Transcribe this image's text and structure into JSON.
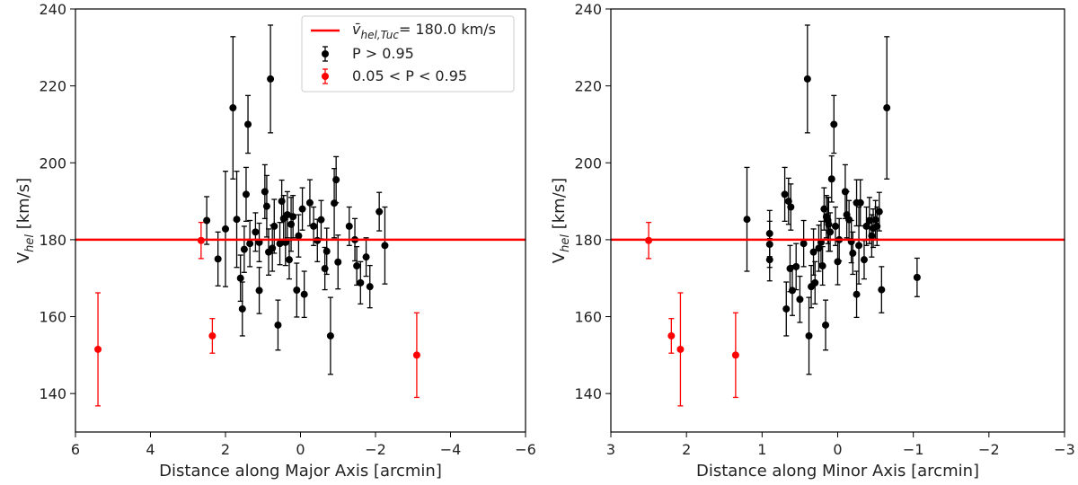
{
  "chart_data": [
    {
      "type": "scatter",
      "xlabel": "Distance along Major Axis [arcmin]",
      "ylabel": "V",
      "ylabel_sub": "hel",
      "ylabel_suffix": " [km/s]",
      "xlim": [
        6,
        -6
      ],
      "ylim": [
        130,
        240
      ],
      "xticks": [
        6,
        4,
        2,
        0,
        -2,
        -4,
        -6
      ],
      "yticks": [
        140,
        160,
        180,
        200,
        220,
        240
      ],
      "xtick_labels": [
        "6",
        "4",
        "2",
        "0",
        "−2",
        "−4",
        "−6"
      ],
      "ytick_labels": [
        "140",
        "160",
        "180",
        "200",
        "220",
        "240"
      ],
      "hline": 180.0,
      "legend": {
        "location": "upper right",
        "mean_label": "= 180.0 km/s",
        "member_label": "P > 0.95",
        "candidate_label": "0.05 < P < 0.95"
      },
      "series": [
        {
          "name": "P > 0.95",
          "color": "#000000",
          "points": [
            {
              "x": 2.5,
              "y": 185.0,
              "err": 6.2
            },
            {
              "x": 2.2,
              "y": 175.0,
              "err": 7.0
            },
            {
              "x": 2.0,
              "y": 182.8,
              "err": 15.0
            },
            {
              "x": 1.8,
              "y": 214.3,
              "err": 18.5
            },
            {
              "x": 1.7,
              "y": 185.3,
              "err": 12.5
            },
            {
              "x": 1.6,
              "y": 170.0,
              "err": 6.0
            },
            {
              "x": 1.55,
              "y": 162.0,
              "err": 7.0
            },
            {
              "x": 1.5,
              "y": 177.5,
              "err": 6.0
            },
            {
              "x": 1.45,
              "y": 191.8,
              "err": 7.0
            },
            {
              "x": 1.4,
              "y": 210.0,
              "err": 7.5
            },
            {
              "x": 1.35,
              "y": 179.0,
              "err": 6.0
            },
            {
              "x": 1.2,
              "y": 182.0,
              "err": 5.0
            },
            {
              "x": 1.1,
              "y": 166.8,
              "err": 6.0
            },
            {
              "x": 1.1,
              "y": 179.3,
              "err": 5.0
            },
            {
              "x": 0.95,
              "y": 192.5,
              "err": 7.0
            },
            {
              "x": 0.9,
              "y": 188.7,
              "err": 8.0
            },
            {
              "x": 0.85,
              "y": 176.8,
              "err": 6.0
            },
            {
              "x": 0.8,
              "y": 221.8,
              "err": 14.0
            },
            {
              "x": 0.75,
              "y": 177.8,
              "err": 6.0
            },
            {
              "x": 0.7,
              "y": 183.5,
              "err": 7.0
            },
            {
              "x": 0.6,
              "y": 157.8,
              "err": 6.5
            },
            {
              "x": 0.55,
              "y": 179.0,
              "err": 5.5
            },
            {
              "x": 0.5,
              "y": 190.0,
              "err": 5.5
            },
            {
              "x": 0.45,
              "y": 185.5,
              "err": 6.0
            },
            {
              "x": 0.4,
              "y": 179.3,
              "err": 6.0
            },
            {
              "x": 0.35,
              "y": 186.5,
              "err": 6.0
            },
            {
              "x": 0.3,
              "y": 174.8,
              "err": 5.0
            },
            {
              "x": 0.25,
              "y": 184.0,
              "err": 7.0
            },
            {
              "x": 0.2,
              "y": 186.0,
              "err": 5.5
            },
            {
              "x": 0.1,
              "y": 166.9,
              "err": 7.0
            },
            {
              "x": 0.05,
              "y": 181.0,
              "err": 5.5
            },
            {
              "x": -0.05,
              "y": 188.0,
              "err": 5.5
            },
            {
              "x": -0.1,
              "y": 165.8,
              "err": 6.0
            },
            {
              "x": -0.25,
              "y": 189.6,
              "err": 6.0
            },
            {
              "x": -0.35,
              "y": 183.5,
              "err": 5.0
            },
            {
              "x": -0.45,
              "y": 179.8,
              "err": 5.5
            },
            {
              "x": -0.55,
              "y": 185.2,
              "err": 5.0
            },
            {
              "x": -0.65,
              "y": 172.5,
              "err": 5.5
            },
            {
              "x": -0.7,
              "y": 177.0,
              "err": 6.0
            },
            {
              "x": -0.8,
              "y": 155.0,
              "err": 10.0
            },
            {
              "x": -0.9,
              "y": 189.5,
              "err": 9.0
            },
            {
              "x": -0.95,
              "y": 195.6,
              "err": 6.0
            },
            {
              "x": -1.0,
              "y": 174.2,
              "err": 7.0
            },
            {
              "x": -1.3,
              "y": 183.5,
              "err": 5.0
            },
            {
              "x": -1.45,
              "y": 180.0,
              "err": 5.5
            },
            {
              "x": -1.5,
              "y": 173.2,
              "err": 5.0
            },
            {
              "x": -1.6,
              "y": 168.8,
              "err": 5.5
            },
            {
              "x": -1.75,
              "y": 175.5,
              "err": 5.0
            },
            {
              "x": -1.85,
              "y": 167.8,
              "err": 5.5
            },
            {
              "x": -2.1,
              "y": 187.3,
              "err": 5.0
            },
            {
              "x": -2.25,
              "y": 178.5,
              "err": 10.0
            }
          ]
        },
        {
          "name": "0.05 < P < 0.95",
          "color": "#ff0000",
          "points": [
            {
              "x": 5.4,
              "y": 151.5,
              "err": 14.7
            },
            {
              "x": 2.65,
              "y": 179.8,
              "err": 4.7
            },
            {
              "x": 2.35,
              "y": 155.0,
              "err": 4.5
            },
            {
              "x": -3.1,
              "y": 150.0,
              "err": 11.0
            }
          ]
        }
      ]
    },
    {
      "type": "scatter",
      "xlabel": "Distance along Minor Axis [arcmin]",
      "ylabel": "V",
      "ylabel_sub": "hel",
      "ylabel_suffix": " [km/s]",
      "xlim": [
        3,
        -3
      ],
      "ylim": [
        130,
        240
      ],
      "xticks": [
        3,
        2,
        1,
        0,
        -1,
        -2,
        -3
      ],
      "yticks": [
        140,
        160,
        180,
        200,
        220,
        240
      ],
      "xtick_labels": [
        "3",
        "2",
        "1",
        "0",
        "−1",
        "−2",
        "−3"
      ],
      "ytick_labels": [
        "140",
        "160",
        "180",
        "200",
        "220",
        "240"
      ],
      "hline": 180.0,
      "series": [
        {
          "name": "P > 0.95",
          "color": "#000000",
          "points": [
            {
              "x": 1.2,
              "y": 185.3,
              "err": 13.5
            },
            {
              "x": 0.9,
              "y": 181.6,
              "err": 6.0
            },
            {
              "x": 0.9,
              "y": 178.8,
              "err": 6.0
            },
            {
              "x": 0.9,
              "y": 174.8,
              "err": 5.5
            },
            {
              "x": 0.7,
              "y": 191.8,
              "err": 7.0
            },
            {
              "x": 0.68,
              "y": 162.0,
              "err": 7.0
            },
            {
              "x": 0.65,
              "y": 190.0,
              "err": 6.0
            },
            {
              "x": 0.63,
              "y": 172.5,
              "err": 6.0
            },
            {
              "x": 0.62,
              "y": 188.5,
              "err": 6.0
            },
            {
              "x": 0.6,
              "y": 166.8,
              "err": 6.5
            },
            {
              "x": 0.55,
              "y": 173.0,
              "err": 6.0
            },
            {
              "x": 0.5,
              "y": 164.5,
              "err": 6.0
            },
            {
              "x": 0.45,
              "y": 179.0,
              "err": 6.0
            },
            {
              "x": 0.4,
              "y": 221.8,
              "err": 14.0
            },
            {
              "x": 0.38,
              "y": 155.0,
              "err": 10.0
            },
            {
              "x": 0.35,
              "y": 167.8,
              "err": 5.5
            },
            {
              "x": 0.32,
              "y": 176.8,
              "err": 6.0
            },
            {
              "x": 0.3,
              "y": 168.8,
              "err": 5.5
            },
            {
              "x": 0.25,
              "y": 177.8,
              "err": 6.0
            },
            {
              "x": 0.22,
              "y": 179.3,
              "err": 5.5
            },
            {
              "x": 0.2,
              "y": 173.2,
              "err": 5.0
            },
            {
              "x": 0.18,
              "y": 188.0,
              "err": 5.5
            },
            {
              "x": 0.16,
              "y": 157.8,
              "err": 6.5
            },
            {
              "x": 0.15,
              "y": 186.0,
              "err": 5.5
            },
            {
              "x": 0.13,
              "y": 185.0,
              "err": 6.0
            },
            {
              "x": 0.12,
              "y": 184.0,
              "err": 7.0
            },
            {
              "x": 0.1,
              "y": 182.0,
              "err": 5.0
            },
            {
              "x": 0.08,
              "y": 195.8,
              "err": 6.0
            },
            {
              "x": 0.05,
              "y": 210.0,
              "err": 7.5
            },
            {
              "x": 0.03,
              "y": 183.5,
              "err": 5.0
            },
            {
              "x": 0.0,
              "y": 174.3,
              "err": 6.0
            },
            {
              "x": -0.02,
              "y": 180.0,
              "err": 5.5
            },
            {
              "x": -0.1,
              "y": 192.5,
              "err": 7.0
            },
            {
              "x": -0.12,
              "y": 186.5,
              "err": 6.0
            },
            {
              "x": -0.15,
              "y": 185.2,
              "err": 5.0
            },
            {
              "x": -0.18,
              "y": 179.5,
              "err": 5.5
            },
            {
              "x": -0.2,
              "y": 176.5,
              "err": 5.5
            },
            {
              "x": -0.25,
              "y": 165.8,
              "err": 6.0
            },
            {
              "x": -0.25,
              "y": 189.6,
              "err": 6.0
            },
            {
              "x": -0.28,
              "y": 178.5,
              "err": 10.0
            },
            {
              "x": -0.3,
              "y": 189.6,
              "err": 6.0
            },
            {
              "x": -0.35,
              "y": 174.8,
              "err": 5.0
            },
            {
              "x": -0.38,
              "y": 183.5,
              "err": 5.0
            },
            {
              "x": -0.42,
              "y": 185.0,
              "err": 6.0
            },
            {
              "x": -0.45,
              "y": 181.0,
              "err": 5.5
            },
            {
              "x": -0.47,
              "y": 183.0,
              "err": 5.0
            },
            {
              "x": -0.5,
              "y": 185.2,
              "err": 5.0
            },
            {
              "x": -0.52,
              "y": 183.5,
              "err": 5.0
            },
            {
              "x": -0.55,
              "y": 187.3,
              "err": 5.0
            },
            {
              "x": -0.58,
              "y": 167.0,
              "err": 6.0
            },
            {
              "x": -0.65,
              "y": 214.3,
              "err": 18.5
            },
            {
              "x": -1.05,
              "y": 170.2,
              "err": 5.0
            }
          ]
        },
        {
          "name": "0.05 < P < 0.95",
          "color": "#ff0000",
          "points": [
            {
              "x": 2.5,
              "y": 179.8,
              "err": 4.7
            },
            {
              "x": 2.2,
              "y": 155.0,
              "err": 4.5
            },
            {
              "x": 2.08,
              "y": 151.5,
              "err": 14.7
            },
            {
              "x": 1.35,
              "y": 150.0,
              "err": 11.0
            }
          ]
        }
      ]
    }
  ]
}
